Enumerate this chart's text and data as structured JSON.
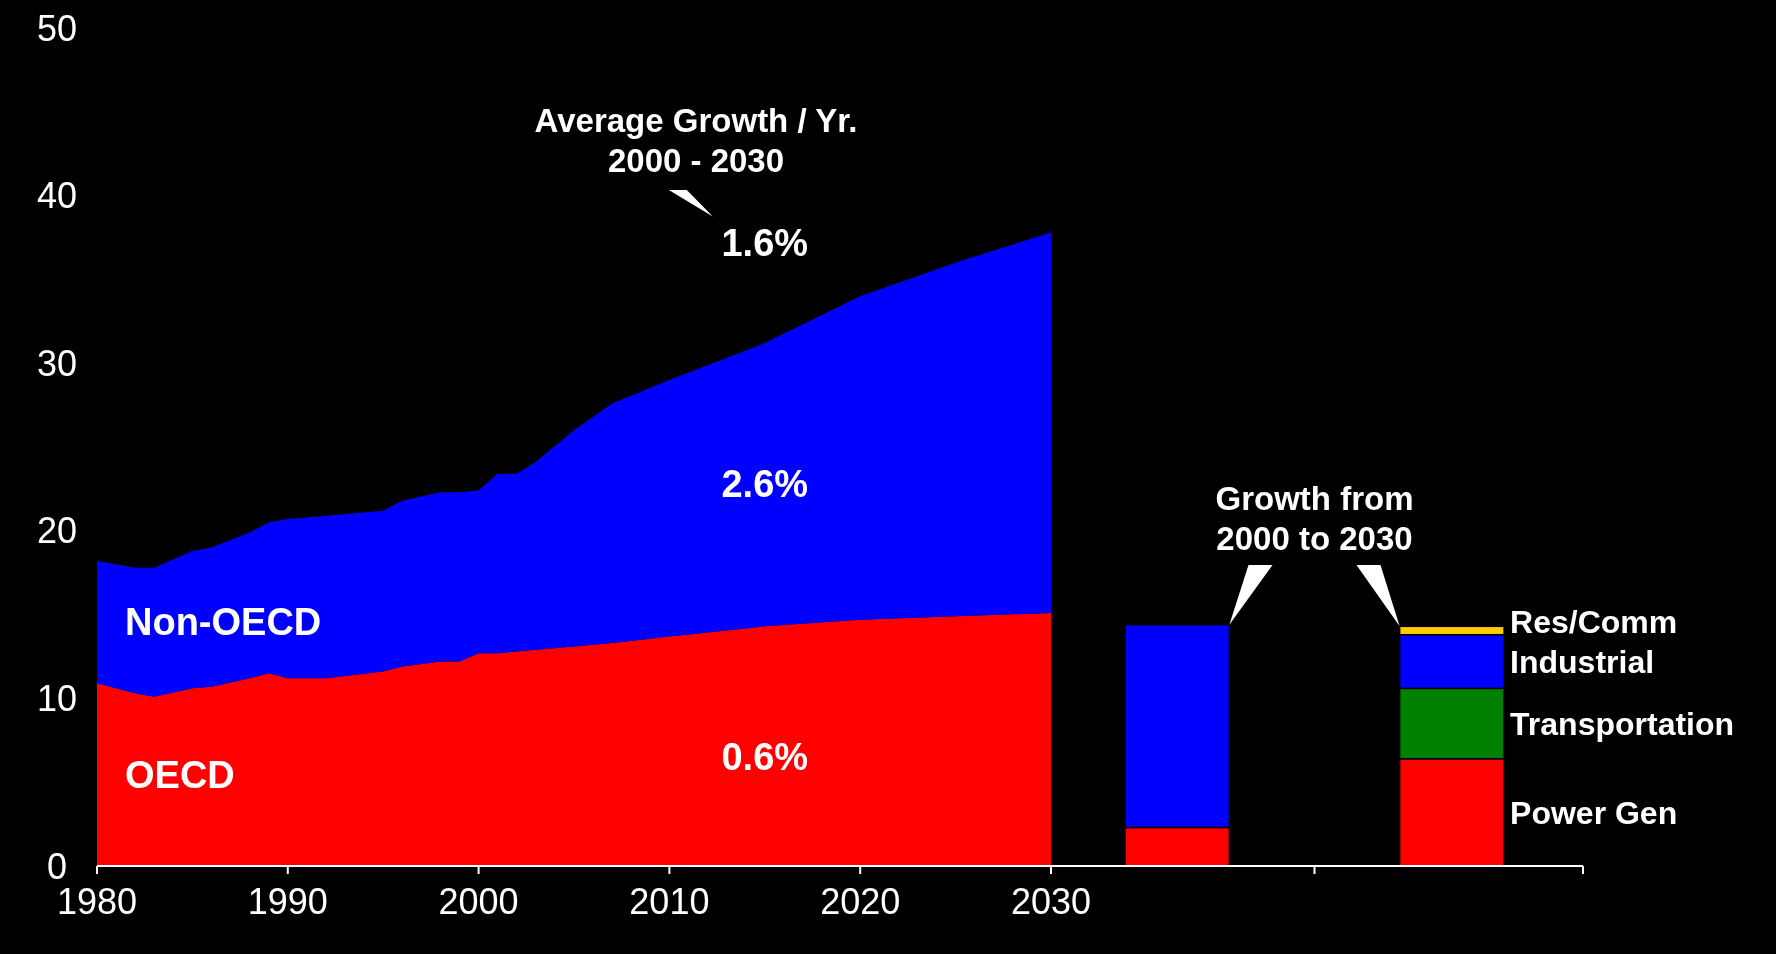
{
  "chart_data": [
    {
      "type": "area",
      "stacked": true,
      "x": [
        1980,
        1982,
        1983,
        1985,
        1986,
        1988,
        1989,
        1990,
        1992,
        1995,
        1996,
        1998,
        1999,
        2000,
        2001,
        2002,
        2003,
        2005,
        2007,
        2010,
        2015,
        2020,
        2025,
        2030
      ],
      "series": [
        {
          "name": "OECD",
          "color": "#ff0000",
          "values": [
            10.9,
            10.3,
            10.1,
            10.6,
            10.7,
            11.2,
            11.5,
            11.2,
            11.2,
            11.6,
            11.9,
            12.2,
            12.2,
            12.7,
            12.7,
            12.8,
            12.9,
            13.1,
            13.3,
            13.7,
            14.3,
            14.7,
            14.9,
            15.1
          ]
        },
        {
          "name": "Non-OECD",
          "color": "#0000ff",
          "values": [
            7.3,
            7.5,
            7.7,
            8.2,
            8.3,
            8.7,
            9.0,
            9.5,
            9.7,
            9.6,
            9.9,
            10.1,
            10.1,
            9.7,
            10.7,
            10.6,
            11.2,
            12.9,
            14.3,
            15.3,
            16.9,
            19.3,
            21.1,
            22.7
          ]
        }
      ],
      "xlim": [
        1980,
        2030
      ],
      "xticks": [
        1980,
        1990,
        2000,
        2010,
        2020,
        2030
      ],
      "ylim": [
        0,
        50
      ],
      "yticks": [
        0,
        10,
        20,
        30,
        40,
        50
      ],
      "annotations": [
        "Average Growth / Yr.\n2000 - 2030",
        "1.6%",
        "2.6%",
        "0.6%"
      ]
    },
    {
      "type": "bar",
      "stacked": true,
      "categories": [
        null,
        null
      ],
      "series": [
        {
          "color": "#ff0000",
          "values": [
            2.3,
            null
          ]
        },
        {
          "color": "#0000ff",
          "values": [
            12.1,
            null
          ]
        },
        {
          "name": "Power Gen",
          "color": "#ff0000",
          "values": [
            null,
            6.4
          ]
        },
        {
          "name": "Transportation",
          "color": "#008000",
          "values": [
            null,
            4.2
          ]
        },
        {
          "name": "Industrial",
          "color": "#0000ff",
          "values": [
            null,
            3.2
          ]
        },
        {
          "name": "Res/Comm",
          "color": "#ffcc00",
          "values": [
            null,
            0.5
          ]
        }
      ],
      "ylim": [
        0,
        50
      ],
      "tick_labels": false,
      "annotations": [
        "Growth from\n2000 to 2030"
      ]
    }
  ]
}
